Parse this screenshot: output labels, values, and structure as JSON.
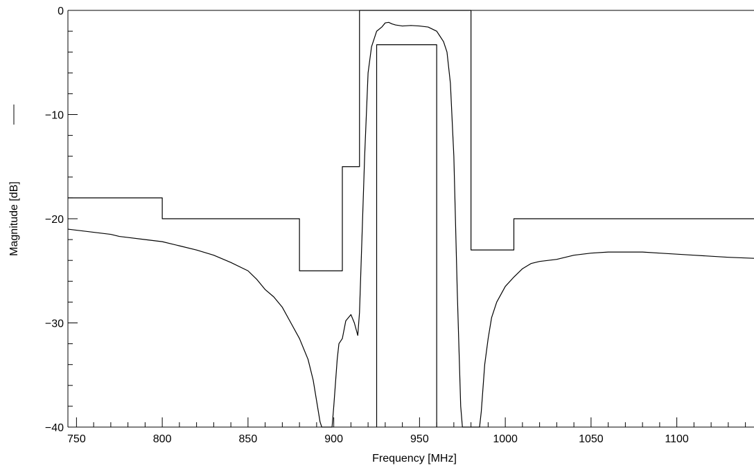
{
  "chart_data": {
    "type": "line",
    "title": "",
    "xlabel": "Frequency [MHz]",
    "ylabel": "Magnitude [dB]",
    "xlim": [
      745,
      1145
    ],
    "ylim": [
      -40,
      0
    ],
    "grid": false,
    "x_major_ticks": [
      750,
      800,
      850,
      900,
      950,
      1000,
      1050,
      1100
    ],
    "x_minor_tick_step": 10,
    "y_major_ticks": [
      0,
      -10,
      -20,
      -30,
      -40
    ],
    "y_minor_tick_step": 2,
    "tick_labels": {
      "x": [
        "750",
        "800",
        "850",
        "900",
        "950",
        "1000",
        "1050",
        "1100"
      ],
      "y": [
        "0",
        "−10",
        "−20",
        "−30",
        "−40"
      ]
    },
    "legend_marker": "line",
    "series": [
      {
        "x": [
          745,
          760,
          770,
          775,
          780,
          790,
          800,
          810,
          820,
          830,
          840,
          850,
          855,
          860,
          865,
          870,
          875,
          880,
          885,
          888,
          890,
          892,
          893,
          899,
          900,
          902,
          903,
          905,
          907,
          910,
          912,
          914,
          915,
          916,
          918,
          920,
          922,
          925,
          928,
          930,
          932,
          934,
          936,
          940,
          945,
          950,
          955,
          960,
          962,
          964,
          966,
          968,
          970,
          972,
          974,
          975,
          985,
          986,
          988,
          990,
          992,
          995,
          1000,
          1005,
          1010,
          1015,
          1020,
          1025,
          1030,
          1040,
          1050,
          1060,
          1070,
          1080,
          1090,
          1100,
          1110,
          1120,
          1130,
          1145
        ],
        "y": [
          -21,
          -21.3,
          -21.5,
          -21.7,
          -21.8,
          -22,
          -22.2,
          -22.6,
          -23,
          -23.5,
          -24.2,
          -25,
          -25.8,
          -26.8,
          -27.5,
          -28.5,
          -30,
          -31.5,
          -33.5,
          -35.5,
          -37.5,
          -39.5,
          -40,
          -40,
          -38,
          -33.5,
          -32,
          -31.5,
          -29.8,
          -29.2,
          -30,
          -31.2,
          -29,
          -24,
          -14,
          -6,
          -3.5,
          -2,
          -1.6,
          -1.2,
          -1.15,
          -1.3,
          -1.4,
          -1.5,
          -1.45,
          -1.5,
          -1.6,
          -2,
          -2.5,
          -3,
          -4,
          -7,
          -14,
          -27,
          -38,
          -40,
          -40,
          -38.5,
          -34,
          -31.5,
          -29.5,
          -28,
          -26.5,
          -25.6,
          -24.8,
          -24.3,
          -24.1,
          -24,
          -23.9,
          -23.5,
          -23.3,
          -23.2,
          -23.2,
          -23.2,
          -23.3,
          -23.4,
          -23.5,
          -23.6,
          -23.7,
          -23.8
        ]
      },
      {
        "x": [
          745,
          800,
          800,
          880,
          880,
          905,
          905,
          915,
          915,
          980,
          980,
          1005,
          1005,
          1145
        ],
        "y": [
          -18,
          -18,
          -20,
          -20,
          -25,
          -25,
          -15,
          -15,
          0,
          0,
          -23,
          -23,
          -20,
          -20
        ]
      },
      {
        "x": [
          925,
          925,
          960,
          960
        ],
        "y": [
          -40,
          -3.3,
          -3.3,
          -40
        ]
      }
    ]
  }
}
